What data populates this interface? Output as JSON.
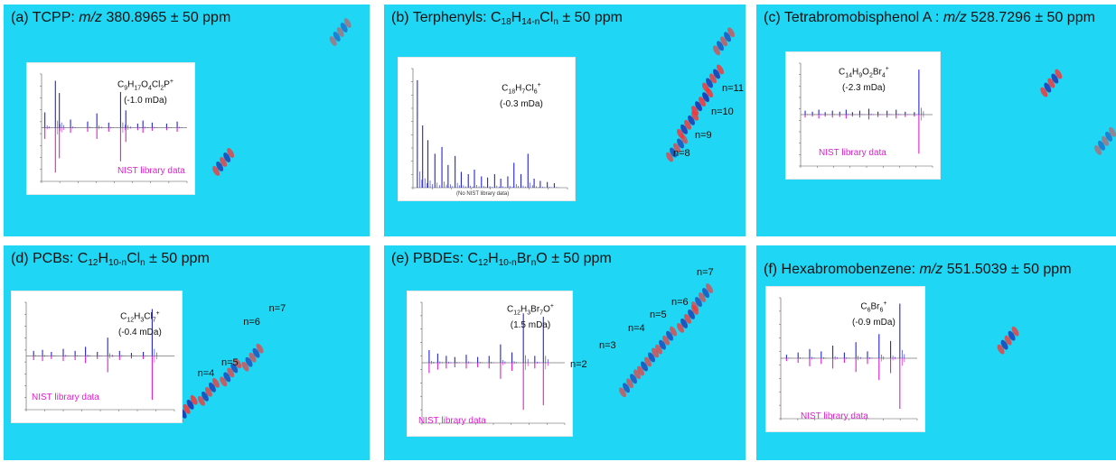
{
  "colors": {
    "panel_bg": "#1fd6f4",
    "exp_spectrum": "#2424d8",
    "nist_spectrum": "#e01fd0",
    "peak_hot": "#ff3030",
    "peak_cool": "#1a2db0"
  },
  "chart_data": [
    {
      "type": "heatmap",
      "panel": "a",
      "title_parts": [
        "(a) TCPP: ",
        "m/z",
        " 380.8965 ± 50 ppm"
      ],
      "inset": {
        "type": "bar",
        "formula": {
          "base": "C",
          "sub1": "9",
          "m1": "H",
          "sub2": "17",
          "m2": "O",
          "sub3": "4",
          "m3": "Cl",
          "sub4": "2",
          "m4": "P",
          "sup": "+"
        },
        "mass_error": "(-1.0 mDa)",
        "nist_label": "NIST library data",
        "series": [
          {
            "name": "experimental",
            "x": [
              60.0,
              76.0,
              82.0,
              99.0,
              125.0,
              139.0,
              157.0,
              175.0,
              183.0,
              201.0,
              209.0,
              223.0,
              245.0,
              261.0
            ],
            "values": [
              0.3,
              0.92,
              0.68,
              0.16,
              0.12,
              0.28,
              0.1,
              0.7,
              0.34,
              0.08,
              0.14,
              0.1,
              0.08,
              0.12
            ]
          },
          {
            "name": "NIST library data",
            "x": [
              60.0,
              76.0,
              82.0,
              99.0,
              125.0,
              139.0,
              157.0,
              175.0,
              183.0,
              201.0,
              209.0,
              223.0,
              245.0,
              261.0
            ],
            "values": [
              0.22,
              0.88,
              0.6,
              0.1,
              0.08,
              0.22,
              0.08,
              0.66,
              0.28,
              0.05,
              0.1,
              0.06,
              0.05,
              0.08
            ]
          }
        ]
      },
      "spots": [
        {
          "x": 0.62,
          "y": 0.64,
          "i": 0.8
        },
        {
          "x": 0.94,
          "y": 0.08,
          "i": 0.3
        }
      ]
    },
    {
      "type": "heatmap",
      "panel": "b",
      "title_parts": [
        "(b) Terphenyls: ",
        "C",
        "18",
        "H",
        "14-n",
        "Cl",
        "n",
        " ± 50 ppm"
      ],
      "inset": {
        "type": "bar",
        "formula": {
          "base": "C",
          "sub1": "18",
          "m1": "H",
          "sub2": "7",
          "m2": "Cl",
          "sub3": "6",
          "sup": "+"
        },
        "mass_error": "(-0.3 mDa)",
        "no_nist_label": "(No NIST library data)",
        "series": [
          {
            "name": "experimental",
            "x": [
              60,
              66,
              72,
              80,
              88,
              95,
              103,
              110,
              118,
              125,
              133,
              140,
              148,
              155,
              163,
              170,
              178,
              186,
              193,
              200,
              208,
              216
            ],
            "values": [
              0.95,
              0.55,
              0.42,
              0.3,
              0.36,
              0.2,
              0.28,
              0.14,
              0.12,
              0.16,
              0.1,
              0.09,
              0.12,
              0.08,
              0.1,
              0.22,
              0.12,
              0.3,
              0.08,
              0.06,
              0.05,
              0.04
            ]
          }
        ]
      },
      "spots": [
        {
          "x": 0.9,
          "y": 0.38,
          "i": 1.0
        },
        {
          "x": 0.86,
          "y": 0.48,
          "i": 0.9
        },
        {
          "x": 0.83,
          "y": 0.58,
          "i": 0.7
        },
        {
          "x": 0.93,
          "y": 0.28,
          "i": 0.9
        },
        {
          "x": 0.96,
          "y": 0.12,
          "i": 0.6
        }
      ],
      "labels": [
        {
          "text": "n=11",
          "x": 0.935,
          "y": 0.34
        },
        {
          "text": "n=10",
          "x": 0.905,
          "y": 0.44
        },
        {
          "text": "n=9",
          "x": 0.86,
          "y": 0.54
        },
        {
          "text": "n=8",
          "x": 0.8,
          "y": 0.62
        }
      ]
    },
    {
      "type": "heatmap",
      "panel": "c",
      "title_parts": [
        "(c) Tetrabromobisphenol A : ",
        "m/z",
        " 528.7296 ± 50 ppm"
      ],
      "inset": {
        "type": "bar",
        "formula": {
          "base": "C",
          "sub1": "14",
          "m1": "H",
          "sub2": "9",
          "m2": "O",
          "sub3": "2",
          "m3": "Br",
          "sub4": "4",
          "sup": "+"
        },
        "mass_error": "(-2.3 mDa)",
        "nist_label": "NIST library data",
        "series": [
          {
            "name": "experimental",
            "x": [
              60,
              68,
              75,
              82,
              90,
              98,
              105,
              112,
              120,
              130,
              140,
              150,
              160,
              170,
              180,
              185
            ],
            "values": [
              0.08,
              0.06,
              0.1,
              0.05,
              0.08,
              0.06,
              0.1,
              0.05,
              0.08,
              0.12,
              0.06,
              0.08,
              0.1,
              0.06,
              0.05,
              0.92
            ]
          },
          {
            "name": "NIST library data",
            "x": [
              60,
              68,
              75,
              82,
              90,
              98,
              105,
              112,
              120,
              130,
              140,
              150,
              160,
              170,
              180,
              185
            ],
            "values": [
              0.06,
              0.04,
              0.08,
              0.04,
              0.06,
              0.05,
              0.08,
              0.04,
              0.06,
              0.1,
              0.05,
              0.06,
              0.08,
              0.05,
              0.04,
              0.8
            ]
          }
        ]
      },
      "spots": [
        {
          "x": 0.84,
          "y": 0.3,
          "i": 0.9
        },
        {
          "x": 0.99,
          "y": 0.55,
          "i": 0.3
        }
      ]
    },
    {
      "type": "heatmap",
      "panel": "d",
      "title_parts": [
        "(d) PCBs: ",
        "C",
        "12",
        "H",
        "10-n",
        "Cl",
        "n",
        " ± 50 ppm"
      ],
      "inset": {
        "type": "bar",
        "formula": {
          "base": "C",
          "sub1": "12",
          "m1": "H",
          "sub2": "3",
          "m2": "Cl",
          "sub3": "7",
          "sup": "+"
        },
        "mass_error": "(-0.4 mDa)",
        "nist_label": "NIST library data",
        "series": [
          {
            "name": "experimental",
            "x": [
              60,
              66,
              72,
              80,
              88,
              95,
              103,
              110,
              118,
              126,
              134,
              140
            ],
            "values": [
              0.1,
              0.12,
              0.08,
              0.14,
              0.1,
              0.18,
              0.08,
              0.36,
              0.1,
              0.06,
              0.08,
              0.92
            ]
          },
          {
            "name": "NIST library data",
            "x": [
              60,
              66,
              72,
              80,
              88,
              95,
              103,
              110,
              118,
              126,
              134,
              140
            ],
            "values": [
              0.08,
              0.1,
              0.06,
              0.1,
              0.08,
              0.14,
              0.06,
              0.32,
              0.08,
              0.05,
              0.06,
              0.86
            ]
          }
        ]
      },
      "spots": [
        {
          "x": 0.52,
          "y": 0.72,
          "i": 1.0
        },
        {
          "x": 0.58,
          "y": 0.64,
          "i": 0.8
        },
        {
          "x": 0.64,
          "y": 0.55,
          "i": 0.7
        },
        {
          "x": 0.7,
          "y": 0.48,
          "i": 0.6
        }
      ],
      "labels": [
        {
          "text": "n=4",
          "x": 0.53,
          "y": 0.57
        },
        {
          "text": "n=5",
          "x": 0.595,
          "y": 0.52
        },
        {
          "text": "n=6",
          "x": 0.655,
          "y": 0.33
        },
        {
          "text": "n=7",
          "x": 0.725,
          "y": 0.27
        }
      ]
    },
    {
      "type": "heatmap",
      "panel": "e",
      "title_parts": [
        "(e) PBDEs: ",
        "C",
        "12",
        "H",
        "10-n",
        "Br",
        "n",
        "O ± 50 ppm"
      ],
      "inset": {
        "type": "bar",
        "formula": {
          "base": "C",
          "sub1": "12",
          "m1": "H",
          "sub2": "3",
          "m2": "Br",
          "sub3": "7",
          "m3": "O",
          "sup": "+"
        },
        "mass_error": "(1.5 mDa)",
        "nist_label": "NIST library data",
        "series": [
          {
            "name": "experimental",
            "x": [
              60,
              66,
              72,
              78,
              86,
              94,
              102,
              110,
              118,
              126,
              134,
              140
            ],
            "values": [
              0.22,
              0.16,
              0.12,
              0.1,
              0.14,
              0.1,
              0.12,
              0.32,
              0.18,
              0.86,
              0.12,
              0.8
            ]
          },
          {
            "name": "NIST library data",
            "x": [
              60,
              66,
              72,
              78,
              86,
              94,
              102,
              110,
              118,
              126,
              134,
              140
            ],
            "values": [
              0.18,
              0.12,
              0.1,
              0.08,
              0.1,
              0.08,
              0.1,
              0.28,
              0.14,
              0.82,
              0.1,
              0.74
            ]
          }
        ]
      },
      "spots": [
        {
          "x": 0.7,
          "y": 0.6,
          "i": 0.6
        },
        {
          "x": 0.75,
          "y": 0.5,
          "i": 0.7
        },
        {
          "x": 0.8,
          "y": 0.4,
          "i": 0.7
        },
        {
          "x": 0.86,
          "y": 0.3,
          "i": 0.8
        },
        {
          "x": 0.9,
          "y": 0.2,
          "i": 0.6
        }
      ],
      "labels": [
        {
          "text": "n=2",
          "x": 0.515,
          "y": 0.53
        },
        {
          "text": "n=3",
          "x": 0.595,
          "y": 0.44
        },
        {
          "text": "n=4",
          "x": 0.675,
          "y": 0.36
        },
        {
          "text": "n=5",
          "x": 0.735,
          "y": 0.3
        },
        {
          "text": "n=6",
          "x": 0.795,
          "y": 0.24
        },
        {
          "text": "n=7",
          "x": 0.865,
          "y": 0.1
        }
      ]
    },
    {
      "type": "heatmap",
      "panel": "f",
      "title_parts": [
        "(f) Hexabromobenzene: ",
        "m/z",
        " 551.5039 ± 50 ppm"
      ],
      "inset": {
        "type": "bar",
        "formula": {
          "base": "C",
          "sub1": "6",
          "m1": "Br",
          "sub2": "6",
          "sup": "+"
        },
        "mass_error": "(-0.9 mDa)",
        "nist_label": "NIST library data",
        "series": [
          {
            "name": "experimental",
            "x": [
              60,
              70,
              80,
              90,
              100,
              110,
              120,
              130,
              140,
              150,
              158
            ],
            "values": [
              0.06,
              0.1,
              0.16,
              0.12,
              0.22,
              0.1,
              0.28,
              0.12,
              0.42,
              0.3,
              0.95
            ]
          },
          {
            "name": "NIST library data",
            "x": [
              60,
              70,
              80,
              90,
              100,
              110,
              120,
              130,
              140,
              150,
              158
            ],
            "values": [
              0.05,
              0.08,
              0.14,
              0.1,
              0.18,
              0.08,
              0.24,
              0.1,
              0.38,
              0.26,
              0.88
            ]
          }
        ]
      },
      "spots": [
        {
          "x": 0.72,
          "y": 0.4,
          "i": 0.8
        }
      ]
    }
  ]
}
